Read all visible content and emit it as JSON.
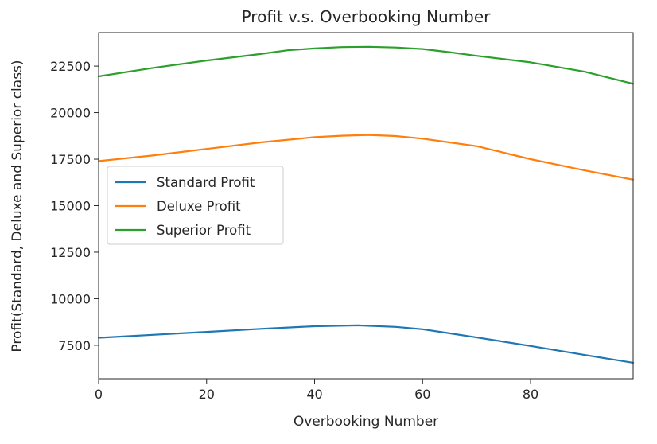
{
  "chart_data": {
    "type": "line",
    "title": "Profit v.s. Overbooking Number",
    "xlabel": "Overbooking Number",
    "ylabel": "Profit(Standard, Deluxe and Superior class)",
    "xlim": [
      0,
      99
    ],
    "ylim": [
      5700,
      24300
    ],
    "xticks": [
      0,
      20,
      40,
      60,
      80
    ],
    "xtick_labels": [
      "0",
      "20",
      "40",
      "60",
      "80"
    ],
    "yticks": [
      7500,
      10000,
      12500,
      15000,
      17500,
      20000,
      22500
    ],
    "ytick_labels": [
      "7500",
      "10000",
      "12500",
      "15000",
      "17500",
      "20000",
      "22500"
    ],
    "grid": false,
    "legend_position": "center-left",
    "series": [
      {
        "name": "Standard Profit",
        "color": "#1f77b4",
        "x": [
          0,
          10,
          20,
          30,
          40,
          48,
          55,
          60,
          65,
          70,
          80,
          90,
          99
        ],
        "values": [
          7900,
          8060,
          8220,
          8380,
          8520,
          8570,
          8490,
          8360,
          8140,
          7920,
          7460,
          6980,
          6560
        ]
      },
      {
        "name": "Deluxe Profit",
        "color": "#ff7f0e",
        "x": [
          0,
          10,
          20,
          30,
          40,
          45,
          50,
          55,
          60,
          65,
          70,
          80,
          90,
          99
        ],
        "values": [
          17400,
          17700,
          18050,
          18400,
          18680,
          18760,
          18800,
          18740,
          18600,
          18400,
          18200,
          17500,
          16900,
          16400
        ]
      },
      {
        "name": "Superior Profit",
        "color": "#2ca02c",
        "x": [
          0,
          10,
          20,
          30,
          35,
          40,
          45,
          50,
          55,
          60,
          65,
          70,
          80,
          90,
          99
        ],
        "values": [
          21950,
          22400,
          22800,
          23150,
          23350,
          23450,
          23520,
          23540,
          23500,
          23420,
          23250,
          23050,
          22700,
          22200,
          21550
        ]
      }
    ]
  }
}
